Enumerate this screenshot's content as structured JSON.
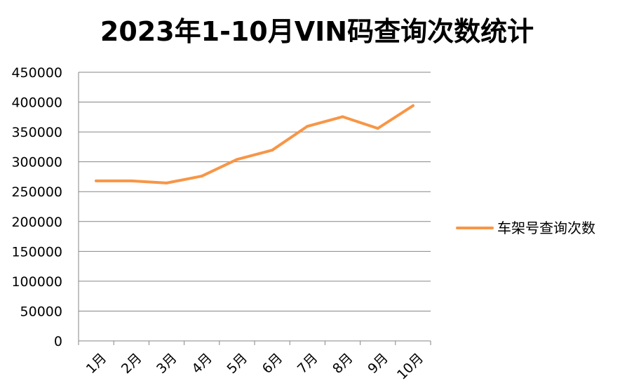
{
  "chart_data": {
    "type": "line",
    "title": "2023年1-10月VIN码查询次数统计",
    "categories": [
      "1月",
      "2月",
      "3月",
      "4月",
      "5月",
      "6月",
      "7月",
      "8月",
      "9月",
      "10月"
    ],
    "series": [
      {
        "name": "车架号查询次数",
        "color": "#F79646",
        "values": [
          268000,
          268000,
          264500,
          276000,
          304000,
          319500,
          359500,
          375500,
          356000,
          394000
        ]
      }
    ],
    "ylim": [
      0,
      450000
    ],
    "yticks": [
      0,
      50000,
      100000,
      150000,
      200000,
      250000,
      300000,
      350000,
      400000,
      450000
    ],
    "ytick_labels": [
      "0",
      "50000",
      "100000",
      "150000",
      "200000",
      "250000",
      "300000",
      "350000",
      "400000",
      "450000"
    ],
    "grid": true,
    "legend_position": "right"
  }
}
